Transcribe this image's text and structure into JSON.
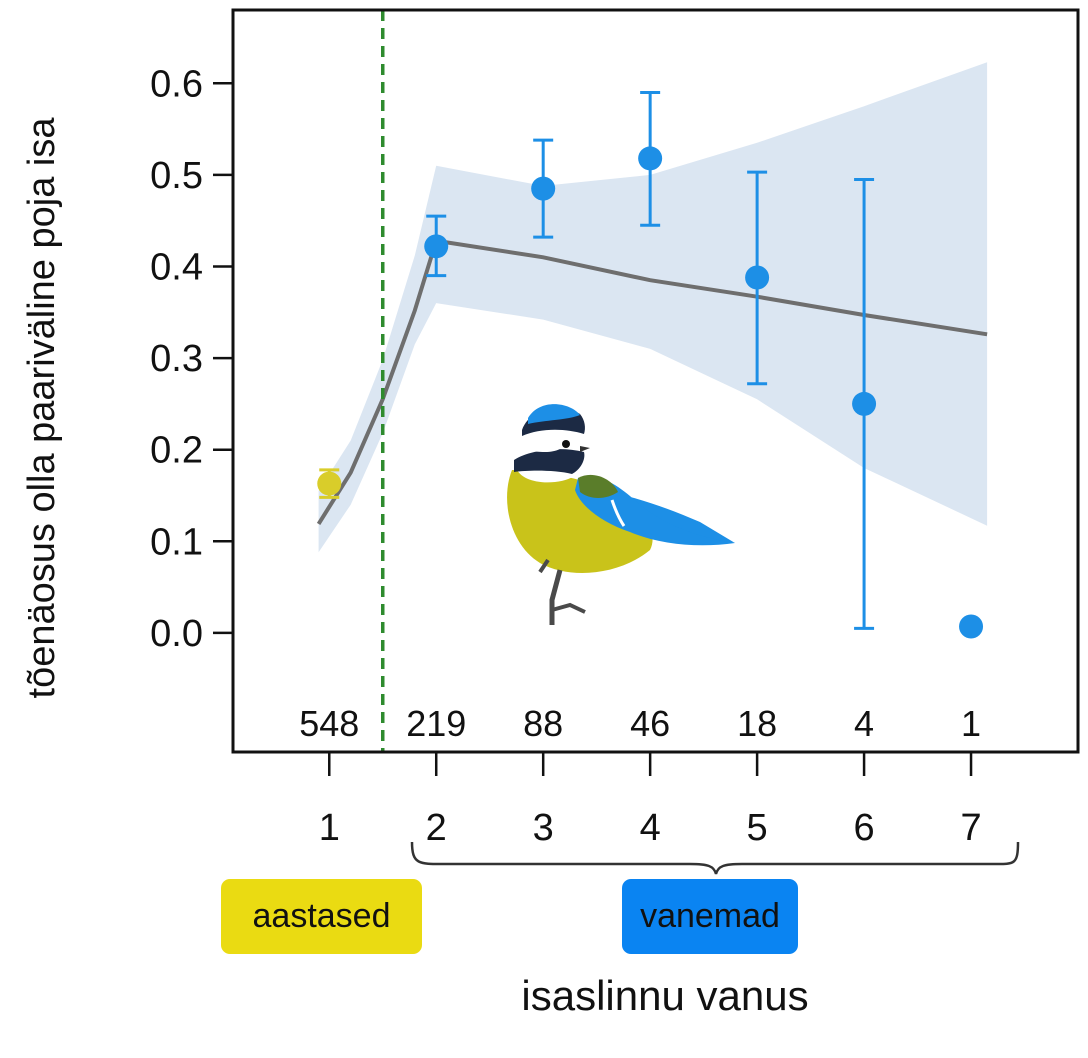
{
  "chart_data": {
    "type": "scatter",
    "title": "",
    "xlabel": "isaslinnu vanus",
    "ylabel": "tõenäosus olla paariväline poja isa",
    "xlim": [
      0.1,
      8.0
    ],
    "ylim": [
      -0.13,
      0.68
    ],
    "x_ticks": [
      1,
      2,
      3,
      4,
      5,
      6,
      7
    ],
    "y_ticks": [
      "0.0",
      "0.1",
      "0.2",
      "0.3",
      "0.4",
      "0.5",
      "0.6"
    ],
    "grid": false,
    "points": [
      {
        "x": 1,
        "y": 0.163,
        "lower": 0.148,
        "upper": 0.178,
        "n": "548",
        "group": "aastased"
      },
      {
        "x": 2,
        "y": 0.422,
        "lower": 0.39,
        "upper": 0.455,
        "n": "219",
        "group": "vanemad"
      },
      {
        "x": 3,
        "y": 0.485,
        "lower": 0.432,
        "upper": 0.538,
        "n": "88",
        "group": "vanemad"
      },
      {
        "x": 4,
        "y": 0.518,
        "lower": 0.445,
        "upper": 0.59,
        "n": "46",
        "group": "vanemad"
      },
      {
        "x": 5,
        "y": 0.388,
        "lower": 0.272,
        "upper": 0.503,
        "n": "18",
        "group": "vanemad"
      },
      {
        "x": 6,
        "y": 0.25,
        "lower": 0.005,
        "upper": 0.495,
        "n": "4",
        "group": "vanemad"
      },
      {
        "x": 7,
        "y": 0.007,
        "n": "1",
        "group": "vanemad"
      }
    ],
    "fit_line": [
      {
        "x": 0.9,
        "y": 0.119,
        "lower": 0.088,
        "upper": 0.155
      },
      {
        "x": 1.2,
        "y": 0.175,
        "lower": 0.14,
        "upper": 0.21
      },
      {
        "x": 1.5,
        "y": 0.255,
        "lower": 0.218,
        "upper": 0.298
      },
      {
        "x": 1.8,
        "y": 0.352,
        "lower": 0.315,
        "upper": 0.412
      },
      {
        "x": 2.0,
        "y": 0.428,
        "lower": 0.36,
        "upper": 0.51
      },
      {
        "x": 3.0,
        "y": 0.41,
        "lower": 0.342,
        "upper": 0.488
      },
      {
        "x": 4.0,
        "y": 0.385,
        "lower": 0.31,
        "upper": 0.5
      },
      {
        "x": 5.0,
        "y": 0.367,
        "lower": 0.255,
        "upper": 0.535
      },
      {
        "x": 6.0,
        "y": 0.347,
        "lower": 0.18,
        "upper": 0.575
      },
      {
        "x": 7.15,
        "y": 0.326,
        "lower": 0.117,
        "upper": 0.623
      }
    ],
    "divider_x": 1.5,
    "groups": {
      "young_label": "aastased",
      "old_label": "vanemad"
    },
    "colors": {
      "young": "#d9cd2a",
      "old": "#1d8fe6",
      "ci_band": "#dbe6f2",
      "fit": "#6e6e6e",
      "divider": "#2e8b2e",
      "badge_young": "#eadb12",
      "badge_old": "#0a84f2"
    }
  }
}
